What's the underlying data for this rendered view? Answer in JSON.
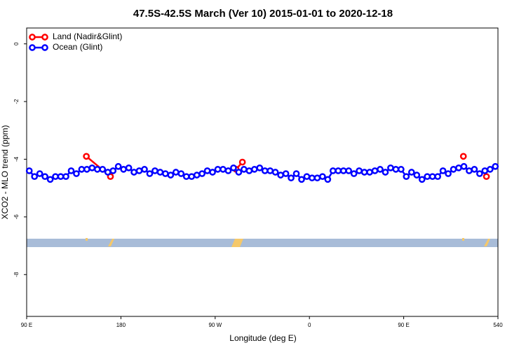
{
  "chart_data": {
    "type": "line",
    "title": "47.5S-42.5S March (Ver 10)   2015-01-01 to 2020-12-18",
    "x_label": "Longitude (deg E)",
    "y_label": "XCO2 - MLO trend (ppm)",
    "xlim": [
      90,
      540
    ],
    "ylim": [
      -9.45,
      0.55
    ],
    "xticks": [
      {
        "value": 90,
        "label": "90 E"
      },
      180,
      {
        "value": 270,
        "label": "90 W"
      },
      {
        "value": 360,
        "label": "0"
      },
      {
        "value": 450,
        "label": "90 E"
      },
      540
    ],
    "yticks": [
      0,
      -2,
      -4,
      -6,
      -8
    ],
    "legend": "top-left",
    "series": [
      {
        "name": "Land (Nadir&Glint)",
        "color": "#ff0000",
        "x": [
          147,
          170,
          null,
          290,
          296,
          null,
          507,
          null,
          529
        ],
        "values": [
          -3.9,
          -4.6,
          null,
          -4.35,
          -4.1,
          null,
          -3.9,
          null,
          -4.6
        ]
      },
      {
        "name": "Ocean (Glint)",
        "color": "#0000ff",
        "x": [
          92.5,
          97.5,
          102.5,
          107.5,
          112.5,
          117.5,
          122.5,
          127.5,
          132.5,
          137.5,
          142.5,
          147.5,
          152.5,
          157.5,
          162.5,
          167.5,
          172.5,
          177.5,
          182.5,
          187.5,
          192.5,
          197.5,
          202.5,
          207.5,
          212.5,
          217.5,
          222.5,
          227.5,
          232.5,
          237.5,
          242.5,
          247.5,
          252.5,
          257.5,
          262.5,
          267.5,
          272.5,
          277.5,
          282.5,
          287.5,
          292.5,
          297.5,
          302.5,
          307.5,
          312.5,
          317.5,
          322.5,
          327.5,
          332.5,
          337.5,
          342.5,
          347.5,
          352.5,
          357.5,
          362.5,
          367.5,
          372.5,
          377.5,
          382.5,
          387.5,
          392.5,
          397.5,
          402.5,
          407.5,
          412.5,
          417.5,
          422.5,
          427.5,
          432.5,
          437.5,
          442.5,
          447.5,
          452.5,
          457.5,
          462.5,
          467.5,
          472.5,
          477.5,
          482.5,
          487.5,
          492.5,
          497.5,
          502.5,
          507.5,
          512.5,
          517.5,
          522.5,
          527.5,
          532.5,
          537.5
        ],
        "values": [
          -4.4,
          -4.6,
          -4.5,
          -4.6,
          -4.7,
          -4.6,
          -4.6,
          -4.6,
          -4.4,
          -4.5,
          -4.35,
          -4.35,
          -4.3,
          -4.35,
          -4.35,
          -4.45,
          -4.4,
          -4.25,
          -4.35,
          -4.3,
          -4.45,
          -4.4,
          -4.35,
          -4.5,
          -4.4,
          -4.45,
          -4.5,
          -4.55,
          -4.45,
          -4.5,
          -4.6,
          -4.6,
          -4.55,
          -4.5,
          -4.4,
          -4.45,
          -4.35,
          -4.35,
          -4.4,
          -4.3,
          -4.45,
          -4.35,
          -4.4,
          -4.35,
          -4.3,
          -4.4,
          -4.4,
          -4.45,
          -4.55,
          -4.5,
          -4.65,
          -4.5,
          -4.7,
          -4.6,
          -4.65,
          -4.65,
          -4.6,
          -4.7,
          -4.4,
          -4.4,
          -4.4,
          -4.4,
          -4.5,
          -4.4,
          -4.45,
          -4.45,
          -4.4,
          -4.35,
          -4.45,
          -4.3,
          -4.35,
          -4.35,
          -4.6,
          -4.45,
          -4.55,
          -4.7,
          -4.6,
          -4.6,
          -4.6,
          -4.4,
          -4.5,
          -4.35,
          -4.3,
          -4.25,
          -4.4,
          -4.35,
          -4.5,
          -4.4,
          -4.35,
          -4.25
        ]
      }
    ]
  }
}
